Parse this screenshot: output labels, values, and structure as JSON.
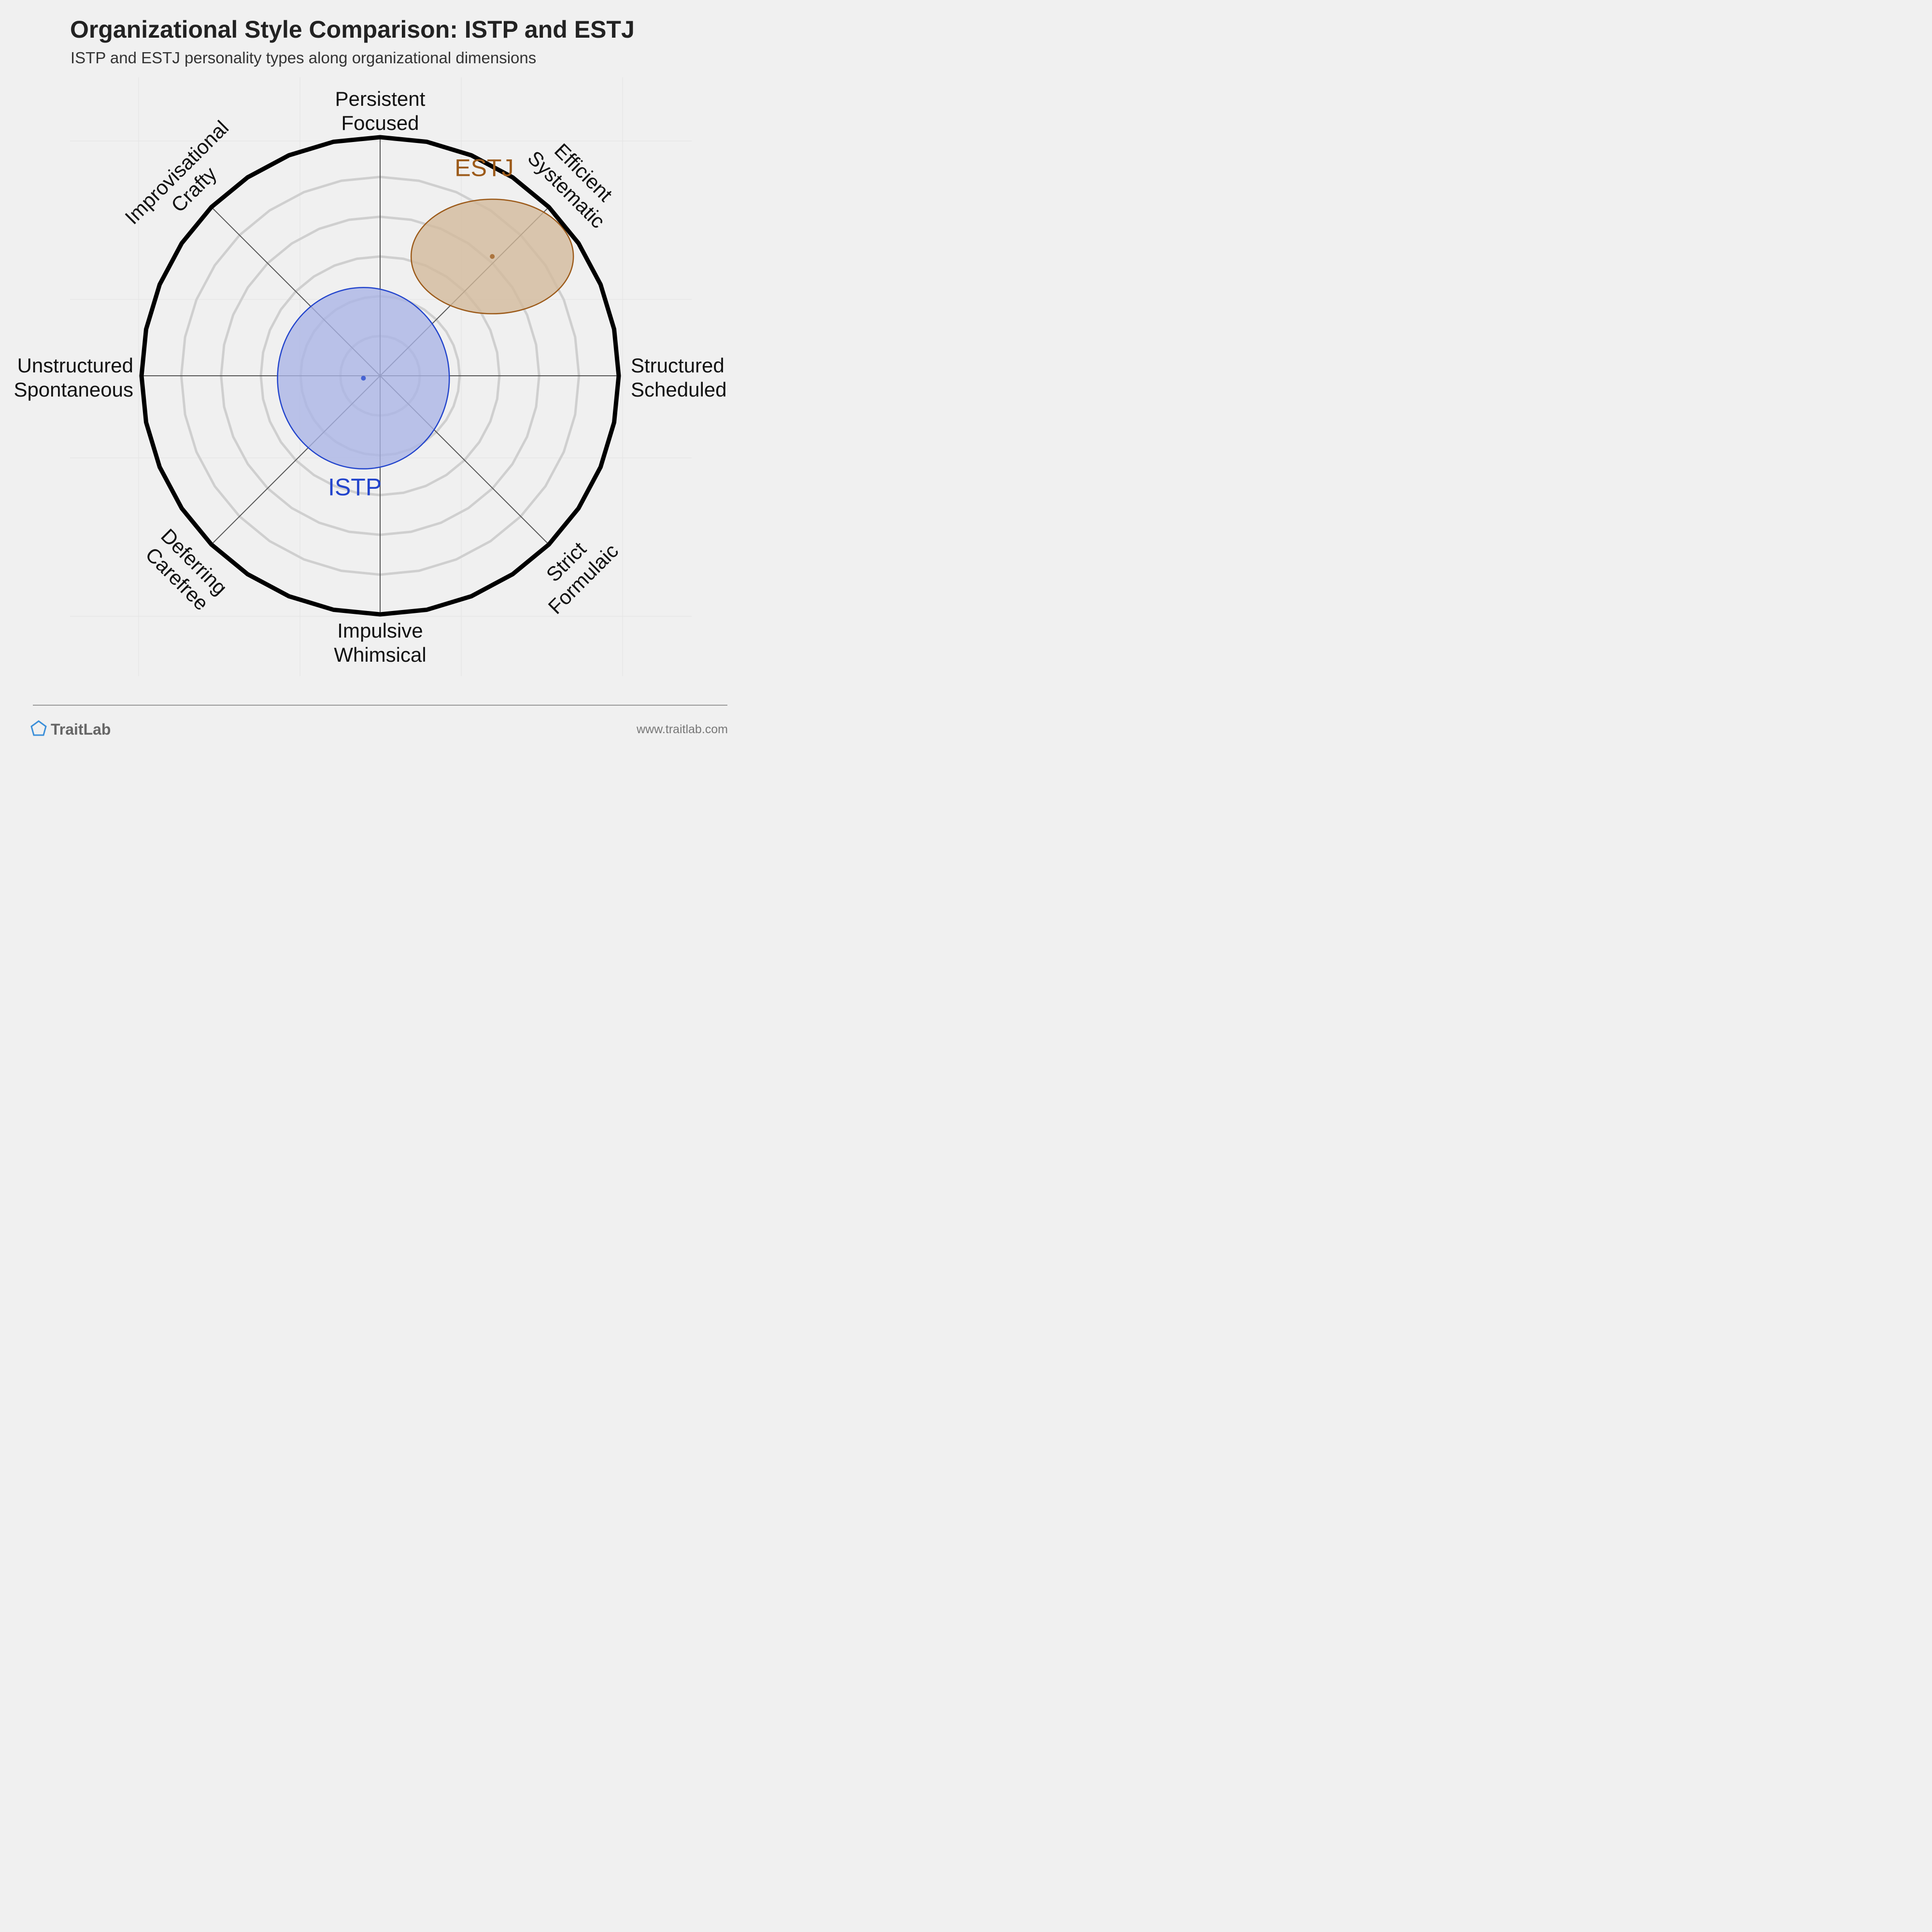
{
  "title": "Organizational Style Comparison: ISTP and ESTJ",
  "subtitle": "ISTP and ESTJ personality types along organizational dimensions",
  "brand": {
    "name": "TraitLab",
    "url": "www.traitlab.com",
    "icon": "pentagon-icon",
    "color": "#3b8fd9"
  },
  "chart_data": {
    "type": "scatter",
    "coordinate_system": "radial (two-dimensional, scale -1 to 1 on each axis)",
    "axes": {
      "top": [
        "Persistent",
        "Focused"
      ],
      "top-right": [
        "Efficient",
        "Systematic"
      ],
      "right": [
        "Structured",
        "Scheduled"
      ],
      "bottom-right": [
        "Strict",
        "Formulaic"
      ],
      "bottom": [
        "Impulsive",
        "Whimsical"
      ],
      "bottom-left": [
        "Deferring",
        "Carefree"
      ],
      "left": [
        "Unstructured",
        "Spontaneous"
      ],
      "top-left": [
        "Improvisational",
        "Crafty"
      ]
    },
    "range": [
      -1,
      1
    ],
    "rings": 6,
    "series": [
      {
        "name": "ESTJ",
        "x": 0.47,
        "y": 0.5,
        "spread_x": 0.34,
        "spread_y": 0.24,
        "color": "#9c5a19",
        "fill": "#d2b89a"
      },
      {
        "name": "ISTP",
        "x": -0.07,
        "y": -0.01,
        "spread_x": 0.36,
        "spread_y": 0.38,
        "color": "#2244cc",
        "fill": "#a9b3e6"
      }
    ]
  }
}
